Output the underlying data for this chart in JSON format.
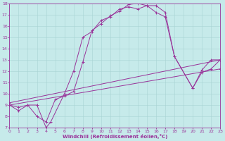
{
  "xlabel": "Windchill (Refroidissement éolien,°C)",
  "xlim": [
    0,
    23
  ],
  "ylim": [
    7,
    18
  ],
  "xticks": [
    0,
    1,
    2,
    3,
    4,
    5,
    6,
    7,
    8,
    9,
    10,
    11,
    12,
    13,
    14,
    15,
    16,
    17,
    18,
    19,
    20,
    21,
    22,
    23
  ],
  "yticks": [
    7,
    8,
    9,
    10,
    11,
    12,
    13,
    14,
    15,
    16,
    17,
    18
  ],
  "bg_color": "#c6eaea",
  "line_color": "#993399",
  "grid_color": "#a8d4d4",
  "curve1_x": [
    0,
    1,
    2,
    3,
    4,
    4.5,
    6,
    7,
    8,
    9,
    10,
    11,
    12,
    13,
    14,
    15,
    16,
    17,
    18,
    20,
    21,
    22,
    23
  ],
  "curve1_y": [
    9.0,
    8.5,
    9.0,
    9.0,
    7.0,
    7.5,
    10.0,
    12.0,
    15.0,
    15.5,
    16.5,
    16.8,
    17.5,
    17.7,
    17.5,
    17.8,
    17.2,
    16.8,
    13.3,
    10.5,
    12.1,
    13.0,
    13.0
  ],
  "curve2_x": [
    0,
    1,
    2,
    3,
    4,
    5,
    6,
    7,
    8,
    9,
    10,
    11,
    12,
    13,
    14,
    15,
    16,
    17,
    18,
    20,
    21,
    22,
    23
  ],
  "curve2_y": [
    9.0,
    8.8,
    9.0,
    8.0,
    7.5,
    9.5,
    9.8,
    10.2,
    12.8,
    15.6,
    16.2,
    16.9,
    17.3,
    17.9,
    18.0,
    17.8,
    17.8,
    17.2,
    13.3,
    10.5,
    11.9,
    12.2,
    13.0
  ],
  "line3_x": [
    0,
    23
  ],
  "line3_y": [
    9.0,
    12.2
  ],
  "line4_x": [
    0,
    23
  ],
  "line4_y": [
    9.2,
    13.0
  ]
}
